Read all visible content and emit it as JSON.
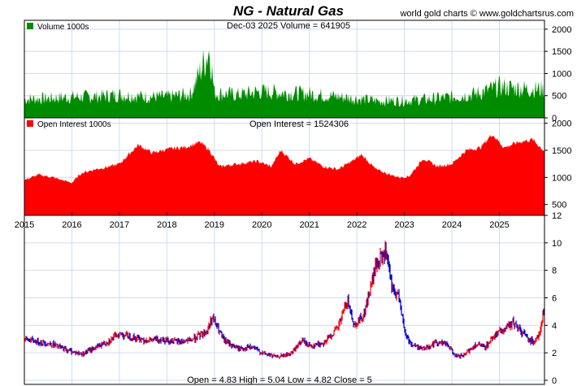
{
  "header": {
    "title": "NG  -  Natural Gas",
    "credit": "world gold charts © www.goldchartsrus.com"
  },
  "colors": {
    "title": "#1a1acc",
    "volume": "#008c00",
    "open_interest": "#ff0000",
    "price_up": "#ff0000",
    "price_down": "#0000cc",
    "grid": "#cfdcf2"
  },
  "volume_panel": {
    "legend": "Volume  1000s",
    "readout": "Dec-03  2025   Volume = 641905"
  },
  "oi_panel": {
    "legend": "Open Interest  1000s",
    "readout": "Open Interest = 1524306"
  },
  "price_panel": {
    "readout": "Open = 4.83    High = 5.04    Low = 4.82    Close = 5"
  },
  "chart_data": [
    {
      "type": "area",
      "name": "volume",
      "unit": "1000s",
      "ylim": [
        0,
        2200
      ],
      "yticks": [
        0,
        500,
        1000,
        1500,
        2000
      ],
      "x": [
        2015.0,
        2015.5,
        2016.0,
        2016.5,
        2017.0,
        2017.5,
        2018.0,
        2018.5,
        2018.9,
        2019.0,
        2019.5,
        2020.0,
        2020.5,
        2021.0,
        2021.5,
        2022.0,
        2022.5,
        2023.0,
        2023.5,
        2024.0,
        2024.5,
        2025.0,
        2025.5,
        2025.93
      ],
      "y": [
        420,
        440,
        470,
        480,
        520,
        480,
        470,
        540,
        1550,
        560,
        520,
        600,
        560,
        540,
        490,
        430,
        380,
        390,
        420,
        470,
        540,
        700,
        660,
        640
      ],
      "grid": true
    },
    {
      "type": "area",
      "name": "open interest",
      "unit": "1000s",
      "ylim": [
        300,
        2100
      ],
      "yticks": [
        500,
        1000,
        1500,
        2000
      ],
      "x": [
        2015.0,
        2015.3,
        2015.6,
        2016.0,
        2016.2,
        2016.5,
        2016.8,
        2017.0,
        2017.4,
        2017.7,
        2018.0,
        2018.4,
        2018.7,
        2018.9,
        2019.1,
        2019.5,
        2019.9,
        2020.2,
        2020.4,
        2020.7,
        2021.0,
        2021.3,
        2021.6,
        2021.9,
        2022.1,
        2022.4,
        2022.7,
        2022.9,
        2023.1,
        2023.4,
        2023.7,
        2024.0,
        2024.3,
        2024.6,
        2024.85,
        2025.1,
        2025.4,
        2025.7,
        2025.93
      ],
      "y": [
        950,
        1050,
        1000,
        900,
        1080,
        1150,
        1200,
        1250,
        1600,
        1450,
        1520,
        1560,
        1650,
        1500,
        1200,
        1250,
        1300,
        1200,
        1500,
        1250,
        1350,
        1200,
        1150,
        1300,
        1420,
        1150,
        1050,
        1000,
        1020,
        1350,
        1200,
        1250,
        1500,
        1550,
        1800,
        1550,
        1650,
        1700,
        1500
      ],
      "grid": true
    },
    {
      "type": "line",
      "name": "price",
      "ylim": [
        0,
        12
      ],
      "yticks": [
        0,
        2,
        4,
        6,
        8,
        10,
        12
      ],
      "xlim": [
        2015.0,
        2025.95
      ],
      "xticks": [
        2015,
        2016,
        2017,
        2018,
        2019,
        2020,
        2021,
        2022,
        2023,
        2024,
        2025
      ],
      "x": [
        2015.0,
        2015.3,
        2015.6,
        2015.9,
        2016.2,
        2016.45,
        2016.8,
        2017.0,
        2017.3,
        2017.6,
        2017.9,
        2018.2,
        2018.5,
        2018.85,
        2018.95,
        2019.2,
        2019.5,
        2019.8,
        2020.0,
        2020.3,
        2020.6,
        2020.85,
        2021.0,
        2021.3,
        2021.6,
        2021.8,
        2021.95,
        2022.15,
        2022.4,
        2022.6,
        2022.75,
        2022.9,
        2023.0,
        2023.15,
        2023.4,
        2023.7,
        2023.9,
        2024.1,
        2024.25,
        2024.5,
        2024.7,
        2024.9,
        2025.1,
        2025.3,
        2025.5,
        2025.7,
        2025.85,
        2025.93
      ],
      "y": [
        3.0,
        2.8,
        2.6,
        2.2,
        1.9,
        2.3,
        2.9,
        3.4,
        3.1,
        2.9,
        3.0,
        2.8,
        2.9,
        3.6,
        4.6,
        2.9,
        2.3,
        2.4,
        2.0,
        1.7,
        1.9,
        2.9,
        2.5,
        2.7,
        3.8,
        5.8,
        4.0,
        4.8,
        8.3,
        9.3,
        6.5,
        6.0,
        3.5,
        2.6,
        2.3,
        2.8,
        2.6,
        1.7,
        1.8,
        2.6,
        2.4,
        3.3,
        3.7,
        4.2,
        3.4,
        2.8,
        3.4,
        5.0
      ],
      "grid": true
    }
  ]
}
